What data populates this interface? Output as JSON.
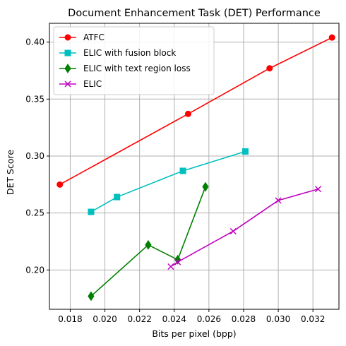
{
  "chart_data": {
    "type": "line",
    "title": "Document Enhancement Task (DET) Performance",
    "xlabel": "Bits per pixel (bpp)",
    "ylabel": "DET Score",
    "xlim": [
      0.0168,
      0.0335
    ],
    "ylim": [
      0.1655,
      0.4165
    ],
    "xticks": [
      0.018,
      0.02,
      0.022,
      0.024,
      0.026,
      0.028,
      0.03,
      0.032
    ],
    "xtick_labels": [
      "0.018",
      "0.020",
      "0.022",
      "0.024",
      "0.026",
      "0.028",
      "0.030",
      "0.032"
    ],
    "yticks": [
      0.2,
      0.25,
      0.3,
      0.35,
      0.4
    ],
    "ytick_labels": [
      "0.20",
      "0.25",
      "0.30",
      "0.35",
      "0.40"
    ],
    "grid": true,
    "legend_position": "upper-left",
    "series": [
      {
        "name": "ATFC",
        "color": "#ff0000",
        "marker": "circle",
        "x": [
          0.0174,
          0.0248,
          0.0295,
          0.0331
        ],
        "y": [
          0.275,
          0.337,
          0.377,
          0.404
        ]
      },
      {
        "name": "ELIC with fusion block",
        "color": "#00bfbf",
        "marker": "square",
        "x": [
          0.0192,
          0.0207,
          0.0245,
          0.0281
        ],
        "y": [
          0.251,
          0.264,
          0.287,
          0.304
        ]
      },
      {
        "name": "ELIC with text region loss",
        "color": "#008000",
        "marker": "diamond",
        "x": [
          0.0192,
          0.0225,
          0.0242,
          0.0258
        ],
        "y": [
          0.177,
          0.222,
          0.209,
          0.273
        ]
      },
      {
        "name": "ELIC",
        "color": "#bf00bf",
        "marker": "x",
        "x": [
          0.0238,
          0.0242,
          0.0274,
          0.03,
          0.0323
        ],
        "y": [
          0.203,
          0.207,
          0.234,
          0.261,
          0.271
        ]
      }
    ]
  }
}
